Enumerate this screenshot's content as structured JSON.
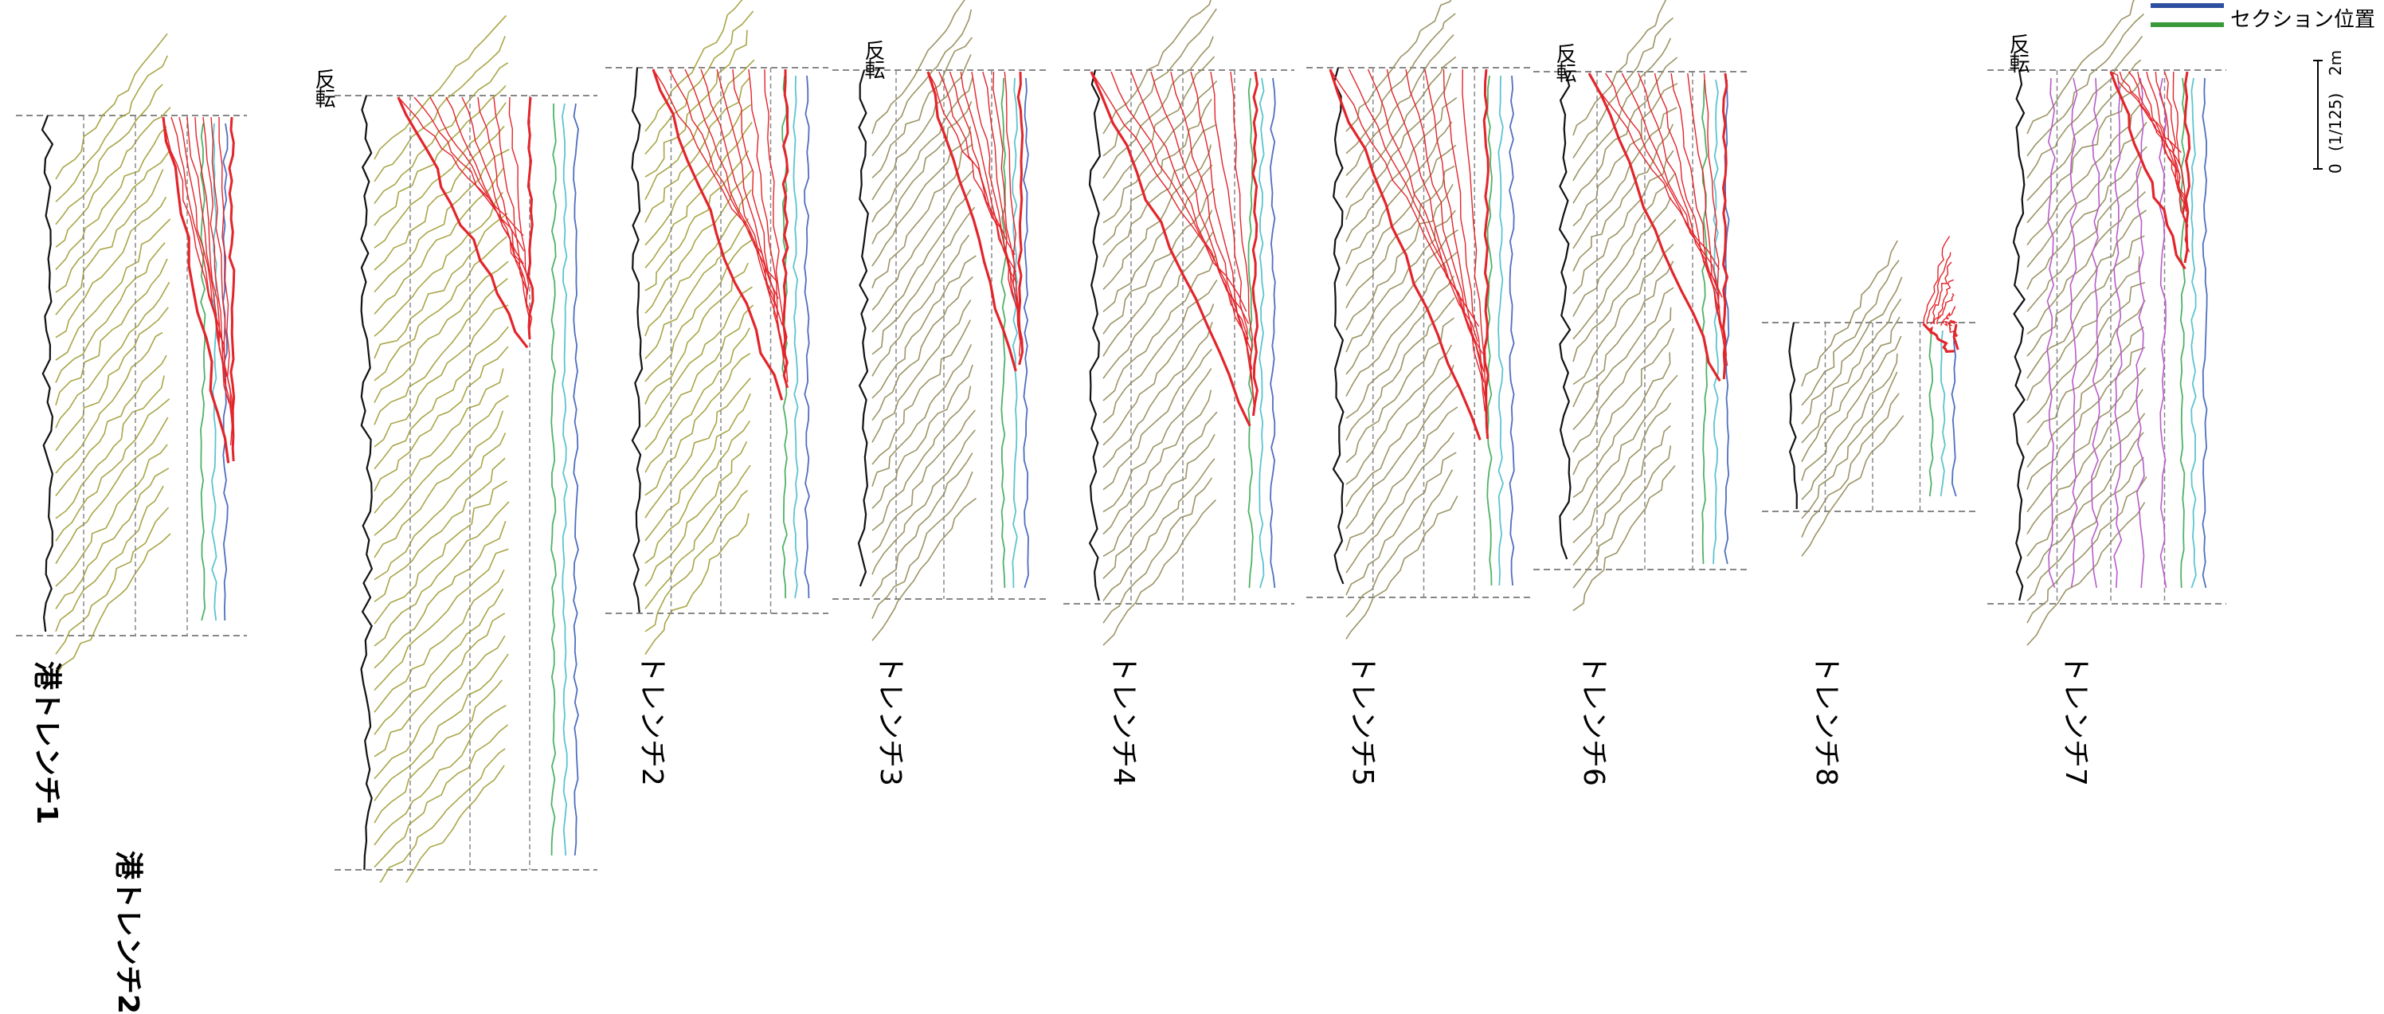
{
  "legend": {
    "label": "セクション位置",
    "colors": [
      "#2e4fa0",
      "#3a9a3a"
    ]
  },
  "scale": {
    "zero": "0",
    "ratio": "(1/125)",
    "max": "2m"
  },
  "reverse_mark": "反転",
  "trenches": [
    {
      "id": "port1",
      "label": "港トレンチ1"
    },
    {
      "id": "port2",
      "label": "港トレンチ2"
    },
    {
      "id": "t2",
      "label": "トレンチ2"
    },
    {
      "id": "t3",
      "label": "トレンチ3"
    },
    {
      "id": "t4",
      "label": "トレンチ4"
    },
    {
      "id": "t5",
      "label": "トレンチ5"
    },
    {
      "id": "t6",
      "label": "トレンチ6"
    },
    {
      "id": "t8",
      "label": "トレンチ8"
    },
    {
      "id": "t7",
      "label": "トレンチ7"
    }
  ],
  "colors": {
    "fault": "#e2252b",
    "olive": "#a9a648",
    "khaki": "#9c9566",
    "green": "#4fb267",
    "cyan": "#5cc4d0",
    "blue": "#4f6fbf",
    "purple": "#b85cc8",
    "grey": "#888888"
  }
}
